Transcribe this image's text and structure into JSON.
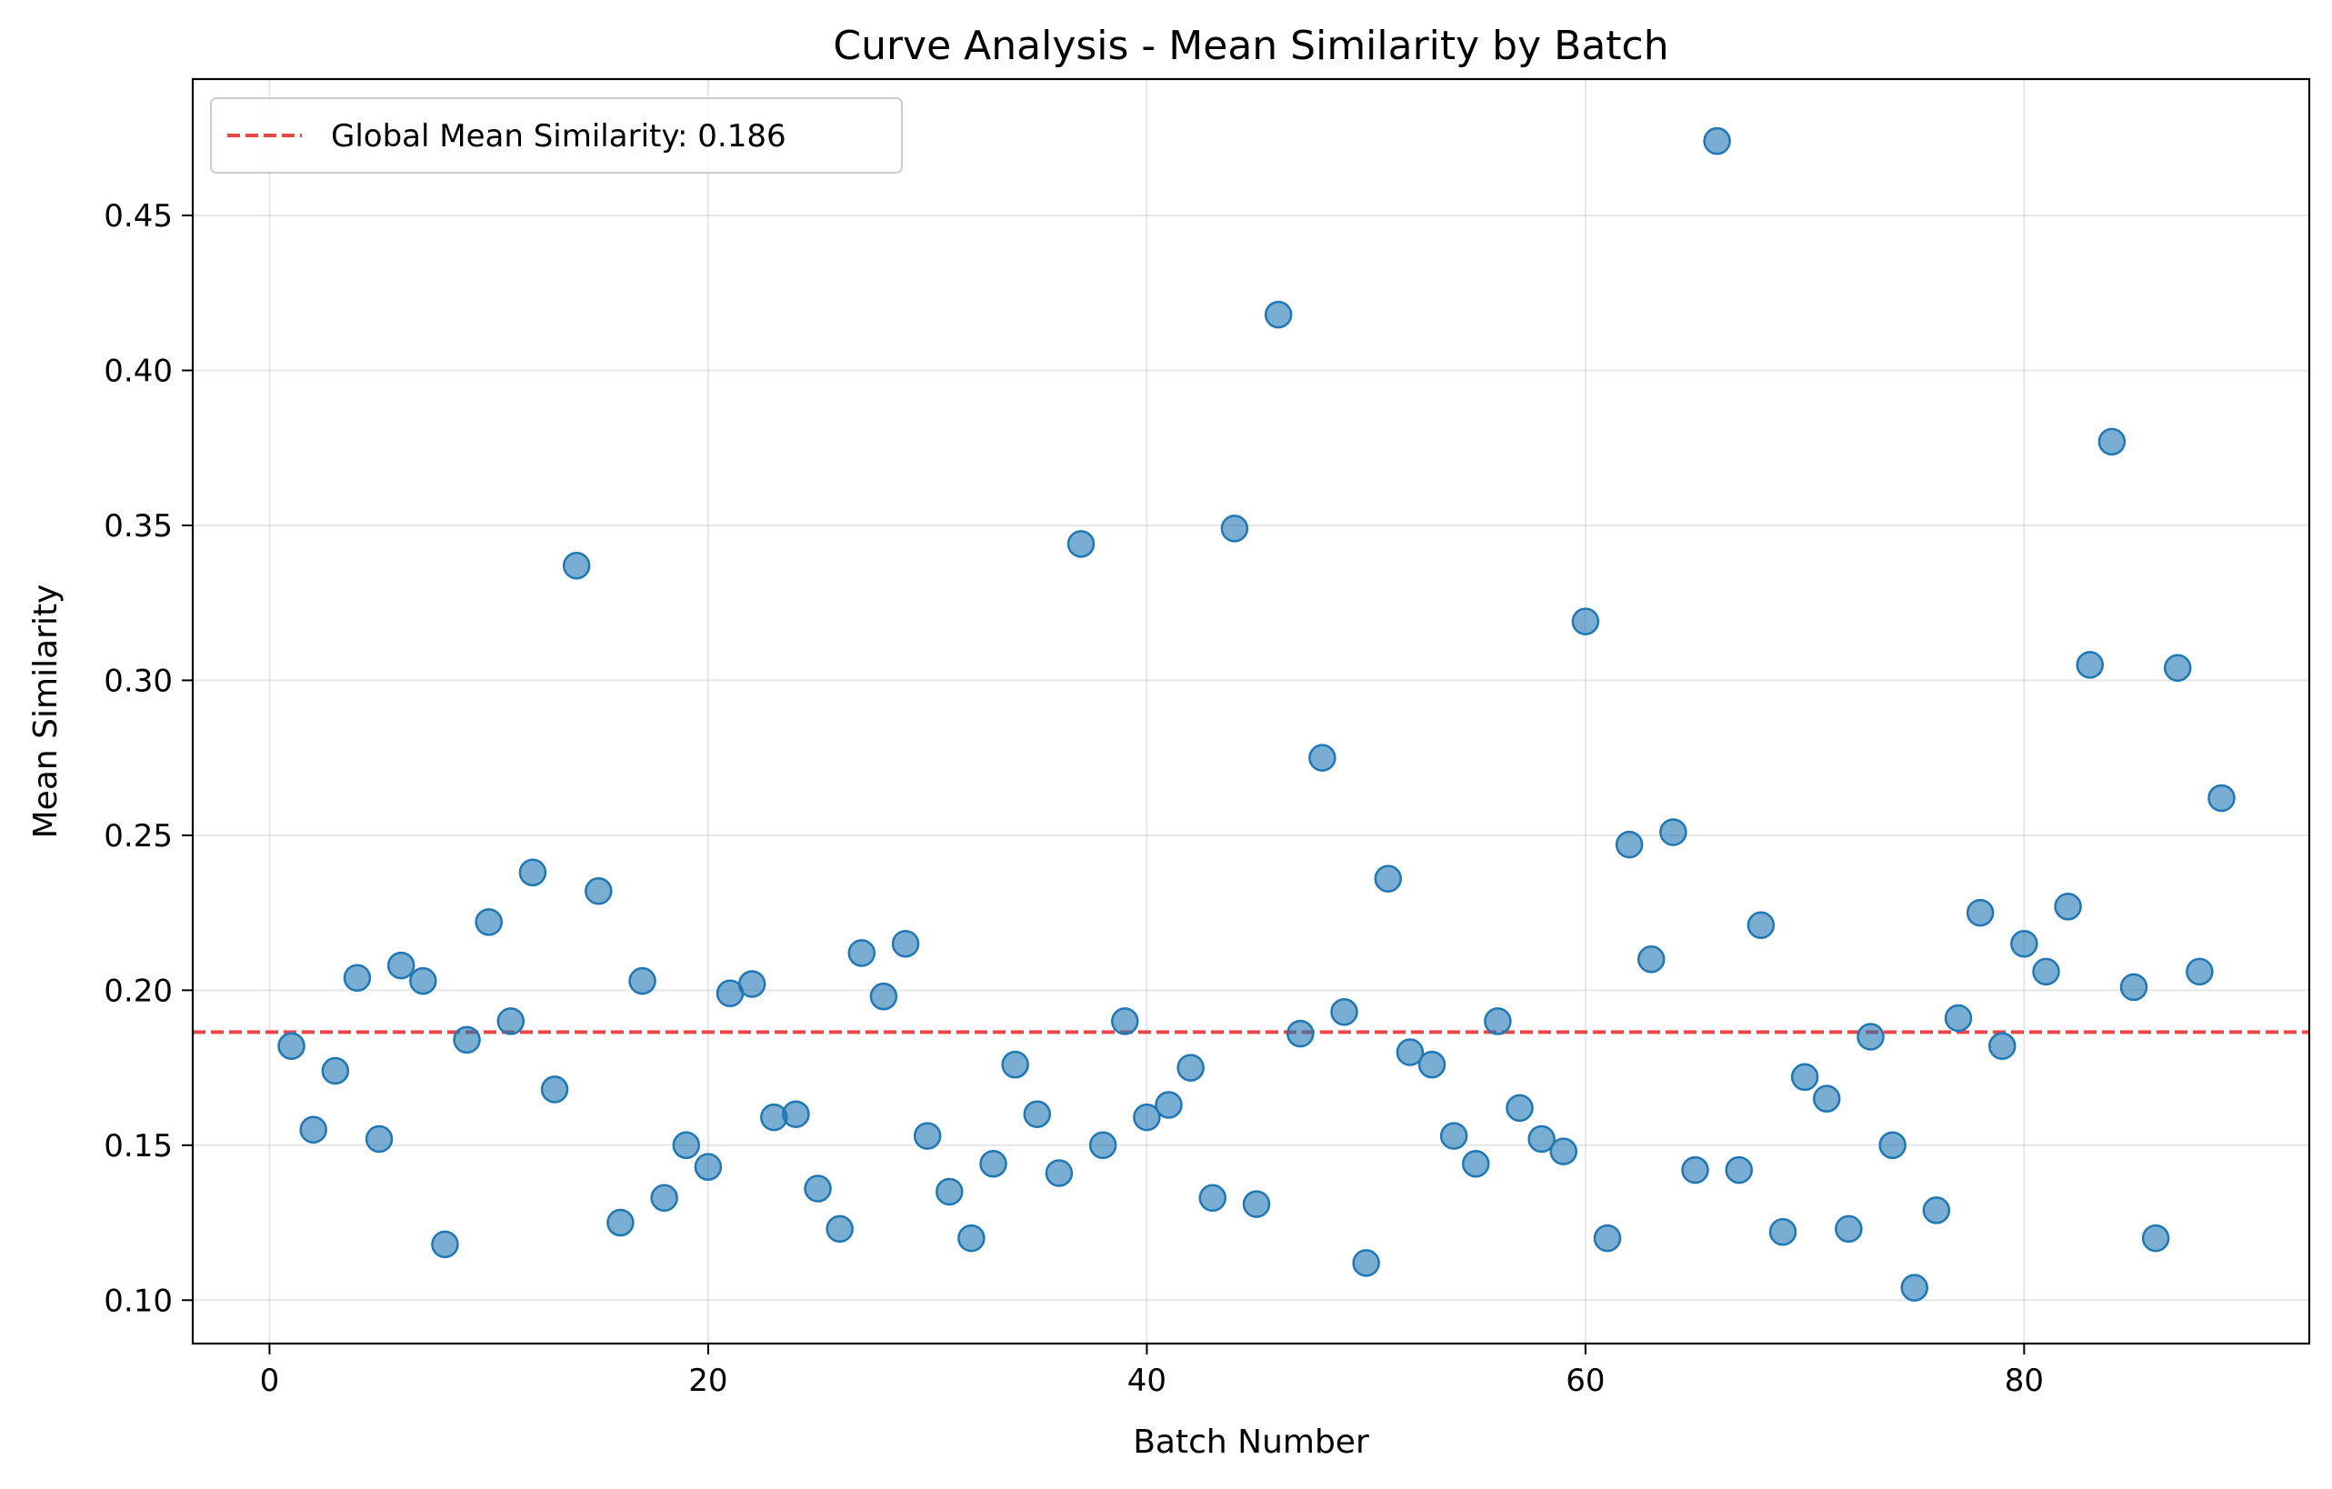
{
  "chart_data": {
    "type": "scatter",
    "title": "Curve Analysis - Mean Similarity by Batch",
    "xlabel": "Batch Number",
    "ylabel": "Mean Similarity",
    "xlim": [
      -3.5,
      93
    ],
    "ylim": [
      0.086,
      0.494
    ],
    "xticks": [
      0,
      20,
      40,
      60,
      80
    ],
    "yticks": [
      0.1,
      0.15,
      0.2,
      0.25,
      0.3,
      0.35,
      0.4,
      0.45
    ],
    "xtick_labels": [
      "0",
      "20",
      "40",
      "60",
      "80"
    ],
    "ytick_labels": [
      "0.10",
      "0.15",
      "0.20",
      "0.25",
      "0.30",
      "0.35",
      "0.40",
      "0.45"
    ],
    "grid": true,
    "legend": {
      "position": "top-left",
      "entries": [
        "Global Mean Similarity: 0.186"
      ]
    },
    "reference_line": {
      "y": 0.1865,
      "label": "Global Mean Similarity: 0.186",
      "color": "#e8474a",
      "style": "dashed"
    },
    "point_color": "#1f77b4",
    "x": [
      1,
      2,
      3,
      4,
      5,
      6,
      7,
      8,
      9,
      10,
      11,
      12,
      13,
      14,
      15,
      16,
      17,
      18,
      19,
      20,
      21,
      22,
      23,
      24,
      25,
      26,
      27,
      28,
      29,
      30,
      31,
      32,
      33,
      34,
      35,
      36,
      37,
      38,
      39,
      40,
      41,
      42,
      43,
      44,
      45,
      46,
      47,
      48,
      49,
      50,
      51,
      52,
      53,
      54,
      55,
      56,
      57,
      58,
      59,
      60,
      61,
      62,
      63,
      64,
      65,
      66,
      67,
      68,
      69,
      70,
      71,
      72,
      73,
      74,
      75,
      76,
      77,
      78,
      79,
      80,
      81,
      82,
      83,
      84,
      85,
      86,
      87,
      88,
      89
    ],
    "y": [
      0.182,
      0.155,
      0.174,
      0.204,
      0.152,
      0.208,
      0.203,
      0.118,
      0.184,
      0.222,
      0.19,
      0.238,
      0.168,
      0.337,
      0.232,
      0.125,
      0.203,
      0.133,
      0.15,
      0.143,
      0.199,
      0.202,
      0.159,
      0.16,
      0.136,
      0.123,
      0.212,
      0.198,
      0.215,
      0.153,
      0.135,
      0.12,
      0.144,
      0.176,
      0.16,
      0.141,
      0.344,
      0.15,
      0.19,
      0.159,
      0.163,
      0.175,
      0.133,
      0.349,
      0.131,
      0.418,
      0.186,
      0.275,
      0.193,
      0.112,
      0.236,
      0.18,
      0.176,
      0.153,
      0.144,
      0.19,
      0.162,
      0.152,
      0.148,
      0.319,
      0.12,
      0.247,
      0.21,
      0.251,
      0.142,
      0.474,
      0.142,
      0.221,
      0.122,
      0.172,
      0.165,
      0.123,
      0.185,
      0.15,
      0.104,
      0.129,
      0.191,
      0.225,
      0.182,
      0.215,
      0.206,
      0.227,
      0.305,
      0.377,
      0.201,
      0.12,
      0.304,
      0.206,
      0.262
    ]
  }
}
